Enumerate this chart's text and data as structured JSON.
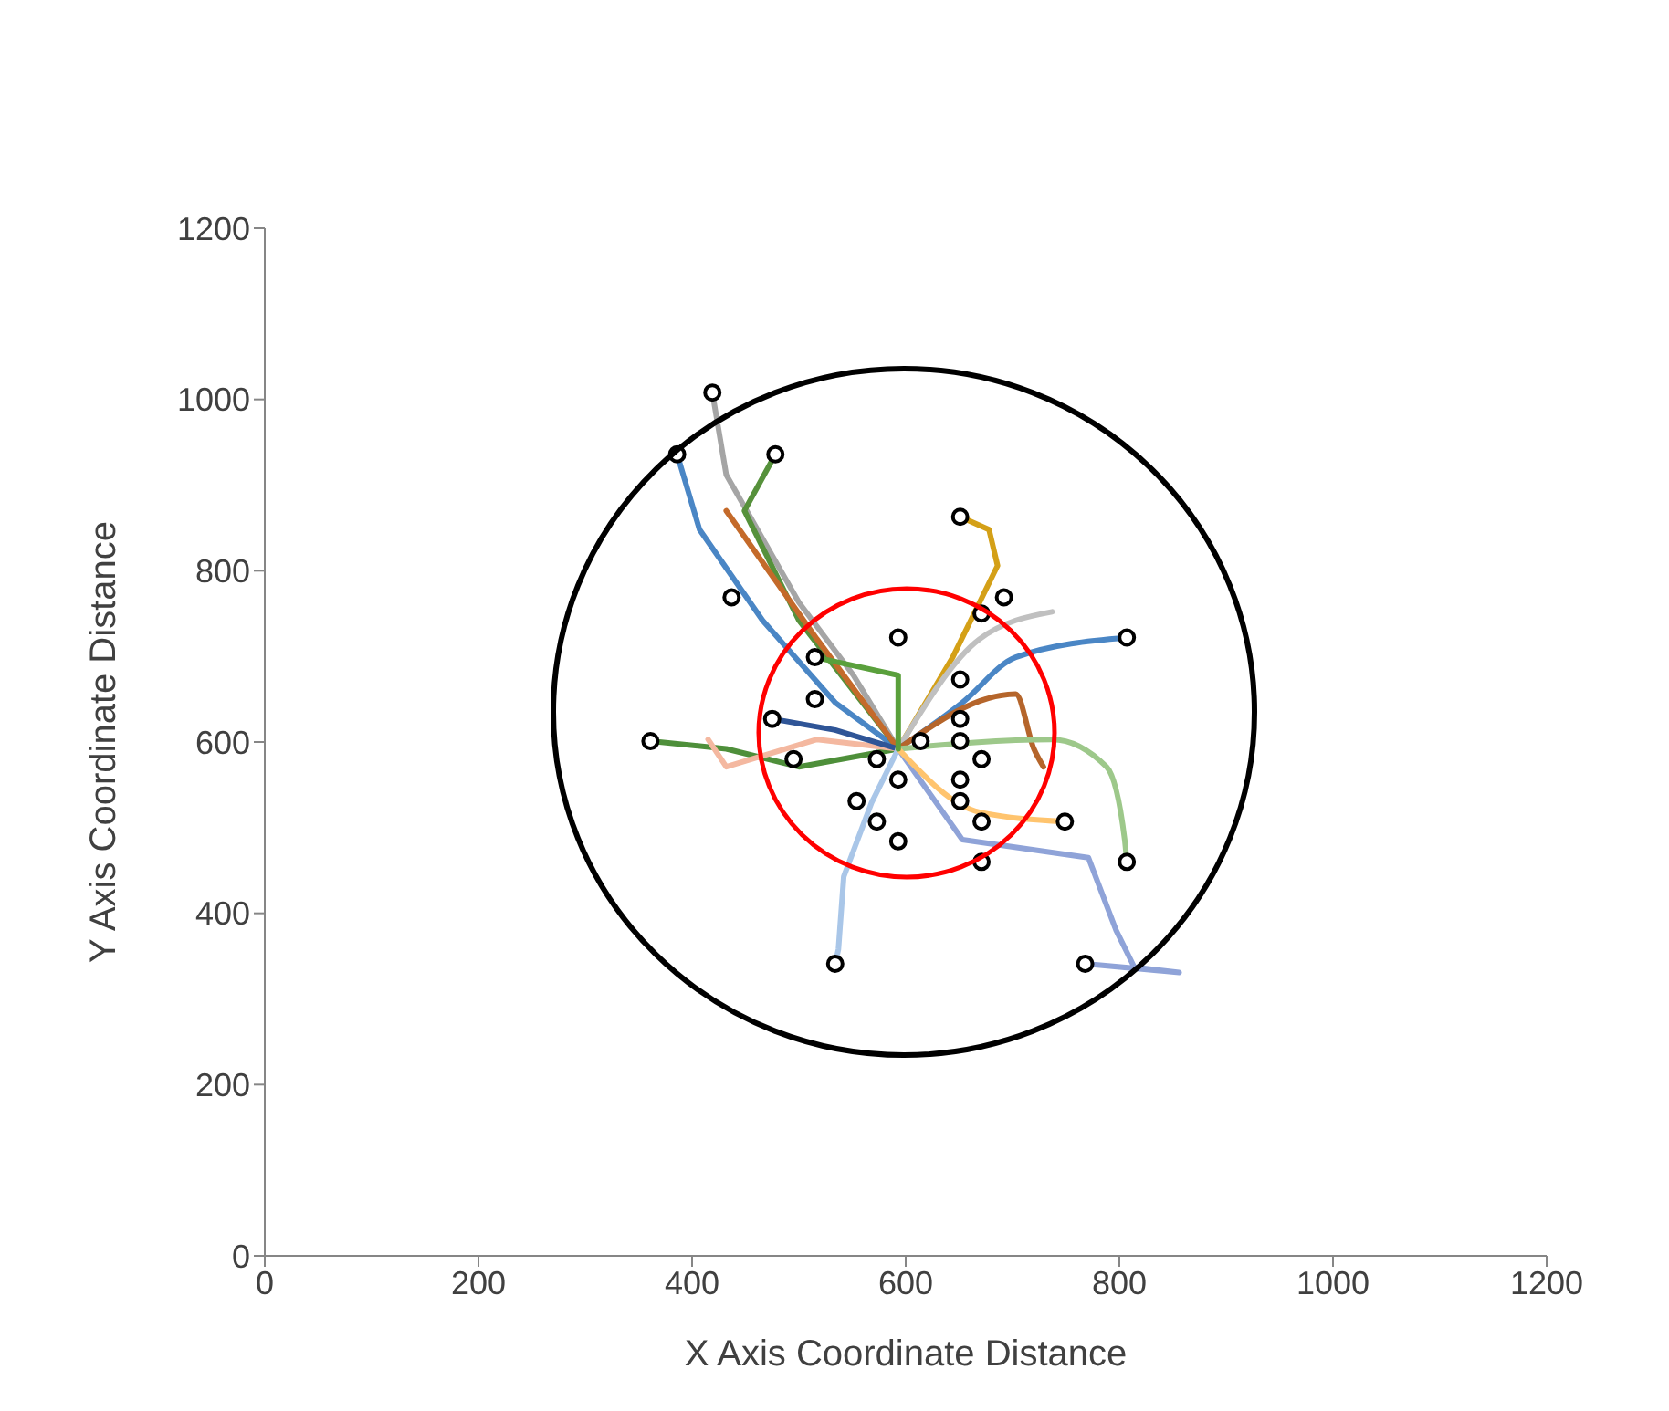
{
  "chart_data": {
    "type": "line",
    "xlabel": "X  Axis  Coordinate Distance",
    "ylabel": "Y  Axis Coordinate Distance",
    "xlim": [
      0,
      1200
    ],
    "ylim": [
      0,
      1200
    ],
    "xticks": [
      0,
      200,
      400,
      600,
      800,
      1000,
      1200
    ],
    "yticks": [
      0,
      200,
      400,
      600,
      800,
      1000,
      1200
    ],
    "grid": false,
    "legend": false,
    "series": [
      {
        "color": "#a5a5a5",
        "marker": "none",
        "x": [
          593,
          551,
          500,
          432,
          419
        ],
        "values": [
          592,
          678,
          763,
          912,
          1008
        ]
      },
      {
        "type": "line",
        "color": "#4a86c5",
        "marker": "none",
        "x": [
          593,
          534,
          466,
          407,
          386
        ],
        "values": [
          592,
          646,
          742,
          848,
          936
        ]
      },
      {
        "type": "line",
        "color": "#56913b",
        "marker": "none",
        "x": [
          593,
          500,
          449,
          478
        ],
        "values": [
          592,
          742,
          870,
          936
        ]
      },
      {
        "type": "line",
        "color": "#c46a2a",
        "marker": "none",
        "x": [
          593,
          517,
          432
        ],
        "values": [
          592,
          720,
          870
        ]
      },
      {
        "type": "line",
        "color": "#d4a017",
        "marker": "none",
        "x": [
          593,
          644,
          686,
          678,
          651
        ],
        "values": [
          592,
          699,
          806,
          848,
          863
        ]
      },
      {
        "type": "line",
        "color": "#c0c0c0",
        "marker": "none",
        "x": [
          593,
          669,
          737
        ],
        "values": [
          592,
          720,
          752
        ]
      },
      {
        "type": "line",
        "color": "#4a86c5",
        "marker": "none",
        "x": [
          593,
          653,
          703,
          807
        ],
        "values": [
          592,
          646,
          699,
          722
        ]
      },
      {
        "type": "line",
        "color": "#b5652b",
        "marker": "none",
        "x": [
          593,
          703,
          720,
          729
        ],
        "values": [
          592,
          656,
          592,
          571
        ]
      },
      {
        "type": "line",
        "color": "#4e8f3a",
        "marker": "none",
        "x": [
          593,
          500,
          432,
          361
        ],
        "values": [
          592,
          571,
          592,
          601
        ]
      },
      {
        "type": "line",
        "color": "#f4b8a0",
        "marker": "none",
        "x": [
          593,
          517,
          432,
          415
        ],
        "values": [
          592,
          603,
          571,
          603
        ]
      },
      {
        "type": "line",
        "color": "#2f5597",
        "marker": "none",
        "x": [
          593,
          534,
          475
        ],
        "values": [
          592,
          614,
          627
        ]
      },
      {
        "type": "line",
        "color": "#9dc88a",
        "marker": "none",
        "x": [
          593,
          737,
          788,
          805,
          807
        ],
        "values": [
          592,
          603,
          571,
          486,
          460
        ]
      },
      {
        "type": "line",
        "color": "#8fa3d8",
        "marker": "none",
        "x": [
          593,
          653,
          771,
          797,
          814,
          856,
          768
        ],
        "values": [
          592,
          486,
          465,
          380,
          337,
          331,
          341
        ]
      },
      {
        "type": "line",
        "color": "#a9c6e8",
        "marker": "none",
        "x": [
          593,
          568,
          542,
          537,
          534
        ],
        "values": [
          592,
          529,
          443,
          358,
          341
        ]
      },
      {
        "type": "line",
        "color": "#ffc46e",
        "marker": "none",
        "x": [
          593,
          669,
          749
        ],
        "values": [
          592,
          518,
          507
        ]
      },
      {
        "type": "line",
        "color": "#5aa03c",
        "marker": "none",
        "x": [
          593,
          593,
          515
        ],
        "values": [
          592,
          678,
          699
        ]
      },
      {
        "type": "scatter",
        "color": "#000000",
        "marker": "circle",
        "x": [
          419,
          386,
          478,
          437,
          651,
          692,
          671,
          593,
          807,
          651,
          515,
          515,
          361,
          475,
          614,
          651,
          651,
          573,
          671,
          495,
          593,
          651,
          651,
          554,
          573,
          671,
          749,
          593,
          671,
          807,
          534,
          768
        ],
        "values": [
          1008,
          936,
          936,
          769,
          863,
          769,
          750,
          722,
          722,
          673,
          699,
          650,
          601,
          627,
          601,
          627,
          601,
          580,
          580,
          580,
          556,
          556,
          531,
          531,
          507,
          507,
          507,
          484,
          460,
          460,
          341,
          341
        ]
      }
    ]
  }
}
